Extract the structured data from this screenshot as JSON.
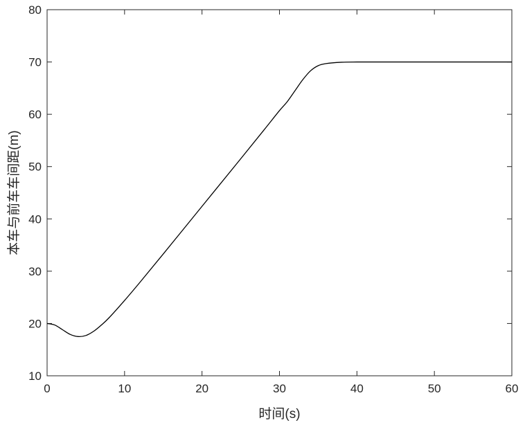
{
  "chart_data": {
    "type": "line",
    "title": "",
    "xlabel": "时间(s)",
    "ylabel": "本车与前车车间距(m)",
    "xlim": [
      0,
      60
    ],
    "ylim": [
      10,
      80
    ],
    "x_ticks": [
      "0",
      "10",
      "20",
      "30",
      "40",
      "50",
      "60"
    ],
    "y_ticks": [
      "10",
      "20",
      "30",
      "40",
      "50",
      "60",
      "70",
      "80"
    ],
    "grid": false,
    "series": [
      {
        "line_color": "#000000",
        "x": [
          0,
          1,
          2,
          3,
          4,
          5,
          6,
          7,
          8,
          10,
          12,
          15,
          20,
          25,
          28,
          30,
          31,
          32,
          33,
          34,
          35,
          36,
          38,
          40,
          45,
          50,
          55,
          60
        ],
        "y": [
          20,
          19.7,
          18.8,
          17.9,
          17.5,
          17.7,
          18.5,
          19.7,
          21.1,
          24.4,
          27.9,
          33.3,
          42.4,
          51.5,
          57.0,
          60.7,
          62.4,
          64.5,
          66.6,
          68.3,
          69.3,
          69.7,
          69.95,
          70,
          70,
          70,
          70,
          70
        ]
      }
    ]
  }
}
